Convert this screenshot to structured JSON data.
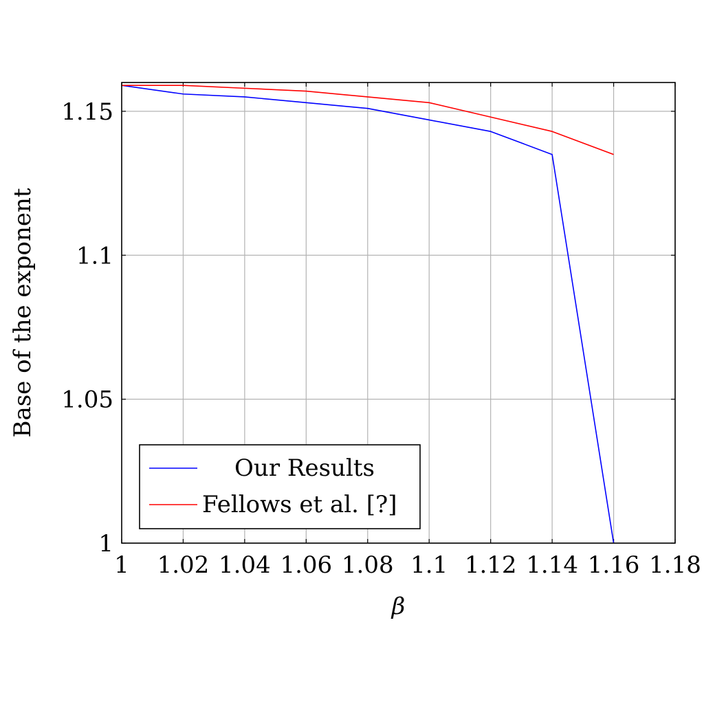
{
  "chart_data": {
    "type": "line",
    "xlabel": "β",
    "ylabel": "Base of the exponent",
    "xlim": [
      1,
      1.18
    ],
    "ylim": [
      1,
      1.16
    ],
    "xticks": [
      1,
      1.02,
      1.04,
      1.06,
      1.08,
      1.1,
      1.12,
      1.14,
      1.16,
      1.18
    ],
    "xtick_labels": [
      "1",
      "1.02",
      "1.04",
      "1.06",
      "1.08",
      "1.1",
      "1.12",
      "1.14",
      "1.16",
      "1.18"
    ],
    "yticks": [
      1,
      1.05,
      1.1,
      1.15
    ],
    "ytick_labels": [
      "1",
      "1.05",
      "1.1",
      "1.15"
    ],
    "grid": true,
    "legend_position": "bottom-left",
    "series": [
      {
        "name": "Our Results",
        "color": "#0000ff",
        "x": [
          1,
          1.02,
          1.04,
          1.06,
          1.08,
          1.1,
          1.12,
          1.14,
          1.16
        ],
        "y": [
          1.159,
          1.156,
          1.155,
          1.153,
          1.151,
          1.147,
          1.143,
          1.135,
          1.0
        ]
      },
      {
        "name": "Fellows et al. [?]",
        "color": "#ff0000",
        "x": [
          1,
          1.02,
          1.04,
          1.06,
          1.08,
          1.1,
          1.12,
          1.14,
          1.16
        ],
        "y": [
          1.159,
          1.159,
          1.158,
          1.157,
          1.155,
          1.153,
          1.148,
          1.143,
          1.135
        ]
      }
    ]
  }
}
